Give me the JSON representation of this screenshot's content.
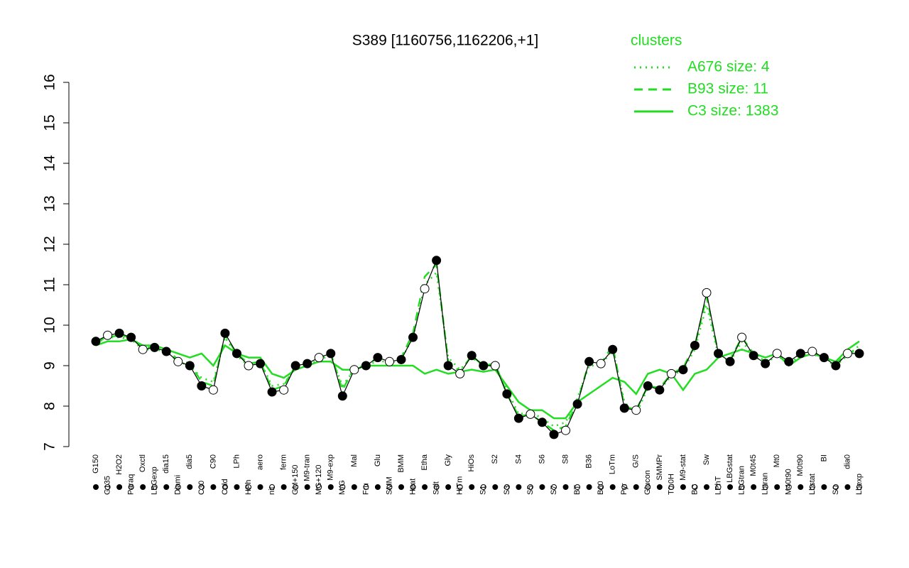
{
  "chart_data": {
    "type": "line",
    "title": "S389 [1160756,1162206,+1]",
    "categories": [
      "G150",
      "G135",
      "H2O2",
      "Paraq",
      "Oxctl",
      "LBGexp",
      "dia15",
      "Diami",
      "dia5",
      "C30",
      "C90",
      "Cold",
      "LPh",
      "HPh",
      "aero",
      "nit",
      "ferm",
      "GM+150",
      "M9-tran",
      "MG+120",
      "M9-exp",
      "M/G",
      "Mal",
      "Fru",
      "Glu",
      "SMM",
      "BMM",
      "Heat",
      "Etha",
      "Salt",
      "Gly",
      "HiTm",
      "HiOs",
      "S1",
      "S2",
      "S3",
      "S4",
      "S5",
      "S6",
      "S7",
      "S8",
      "BT",
      "B36",
      "B60",
      "LoTm",
      "Pyr",
      "G/S",
      "Glucon",
      "SMMPr",
      "T0.0H",
      "M9-stat",
      "BC",
      "Sw",
      "LPhT",
      "LBGstat",
      "LBGtran",
      "M0t45",
      "Lbtran",
      "Mt0",
      "M40t90",
      "M0t90",
      "Lbstat",
      "BI",
      "S0",
      "dia0",
      "Lbexp"
    ],
    "values": [
      9.6,
      9.75,
      9.8,
      9.7,
      9.4,
      9.45,
      9.35,
      9.1,
      9.0,
      8.5,
      8.4,
      9.8,
      9.3,
      9.0,
      9.05,
      8.35,
      8.4,
      9.0,
      9.05,
      9.2,
      9.3,
      8.25,
      8.9,
      9.0,
      9.2,
      9.1,
      9.15,
      9.7,
      10.9,
      11.6,
      9.0,
      8.8,
      9.25,
      9.0,
      9.0,
      8.3,
      7.7,
      7.8,
      7.6,
      7.3,
      7.4,
      8.05,
      9.1,
      9.05,
      9.4,
      7.95,
      7.9,
      8.5,
      8.4,
      8.8,
      8.9,
      9.5,
      10.8,
      9.3,
      9.1,
      9.7,
      9.25,
      9.05,
      9.3,
      9.1,
      9.3,
      9.35,
      9.2,
      9.0,
      9.3,
      9.3
    ],
    "color": "#000000",
    "legend_title": "clusters",
    "series": [
      {
        "name": "A676 size: 4",
        "color": "#22dd22",
        "style": "dotted",
        "values": [
          9.55,
          9.7,
          9.7,
          9.65,
          9.4,
          9.4,
          9.35,
          9.1,
          9.0,
          8.7,
          8.6,
          9.7,
          9.25,
          9.0,
          9.1,
          8.5,
          8.55,
          8.95,
          9.0,
          9.15,
          9.25,
          8.5,
          8.9,
          8.95,
          9.15,
          9.05,
          9.15,
          9.7,
          11.0,
          11.3,
          9.2,
          8.9,
          9.2,
          9.0,
          9.0,
          8.4,
          7.8,
          7.85,
          7.7,
          7.5,
          7.6,
          8.2,
          9.0,
          9.0,
          9.4,
          8.1,
          7.8,
          8.45,
          8.4,
          8.75,
          8.9,
          9.4,
          10.5,
          9.25,
          9.1,
          9.6,
          9.25,
          9.05,
          9.25,
          9.05,
          9.25,
          9.3,
          9.15,
          9.0,
          9.25,
          9.5
        ]
      },
      {
        "name": "B93 size: 11",
        "color": "#22dd22",
        "style": "dashed",
        "values": [
          9.6,
          9.7,
          9.75,
          9.7,
          9.45,
          9.45,
          9.4,
          9.15,
          9.05,
          8.6,
          8.5,
          9.75,
          9.3,
          9.05,
          9.1,
          8.4,
          8.5,
          9.0,
          9.05,
          9.2,
          9.3,
          8.4,
          8.95,
          9.0,
          9.2,
          9.1,
          9.2,
          9.8,
          11.2,
          11.5,
          9.1,
          8.85,
          9.25,
          9.0,
          9.05,
          8.3,
          7.75,
          7.8,
          7.6,
          7.4,
          7.5,
          8.1,
          9.1,
          9.05,
          9.5,
          8.0,
          7.9,
          8.5,
          8.45,
          8.8,
          8.95,
          9.5,
          10.7,
          9.3,
          9.15,
          9.7,
          9.3,
          9.1,
          9.3,
          9.1,
          9.3,
          9.35,
          9.2,
          9.05,
          9.3,
          9.4
        ]
      },
      {
        "name": "C3 size: 1383",
        "color": "#22dd22",
        "style": "solid",
        "values": [
          9.5,
          9.6,
          9.6,
          9.65,
          9.5,
          9.5,
          9.4,
          9.3,
          9.2,
          9.3,
          9.0,
          9.5,
          9.3,
          9.2,
          9.2,
          8.8,
          8.7,
          8.9,
          9.0,
          9.1,
          9.1,
          8.9,
          8.9,
          9.0,
          9.0,
          9.0,
          9.0,
          9.0,
          8.8,
          8.9,
          8.8,
          8.85,
          8.9,
          8.85,
          8.9,
          8.5,
          8.1,
          7.9,
          7.9,
          7.7,
          7.7,
          8.1,
          8.3,
          8.5,
          8.7,
          8.6,
          8.3,
          8.8,
          8.9,
          8.8,
          8.4,
          8.8,
          8.9,
          9.2,
          9.3,
          9.4,
          9.3,
          9.2,
          9.3,
          9.0,
          9.2,
          9.3,
          9.2,
          9.1,
          9.4,
          9.6
        ]
      }
    ],
    "ylim": [
      7,
      16
    ],
    "yticks": [
      7,
      8,
      9,
      10,
      11,
      12,
      13,
      14,
      15,
      16
    ]
  }
}
